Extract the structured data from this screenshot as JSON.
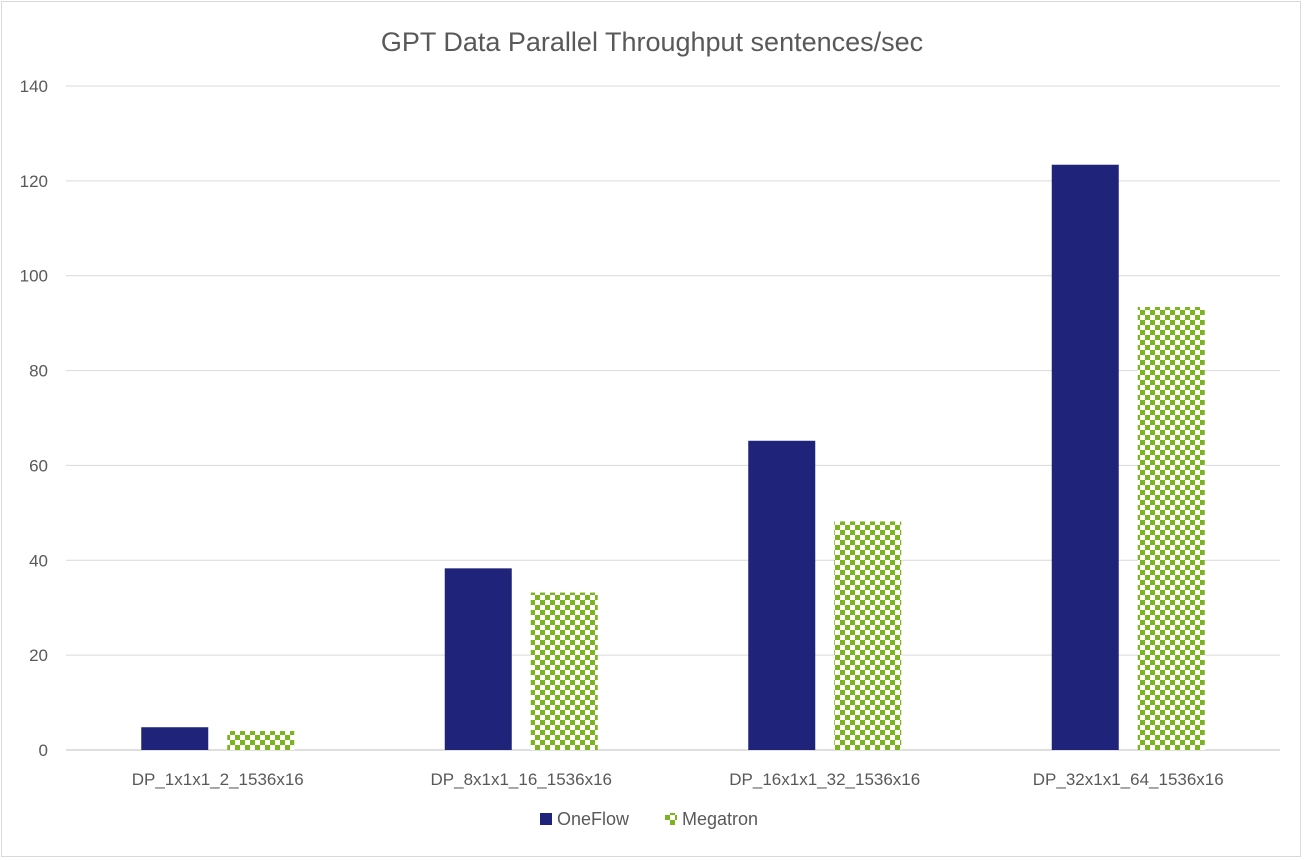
{
  "chart_data": {
    "type": "bar",
    "title": "GPT Data Parallel Throughput  sentences/sec",
    "xlabel": "",
    "ylabel": "",
    "categories": [
      "DP_1x1x1_2_1536x16",
      "DP_8x1x1_16_1536x16",
      "DP_16x1x1_32_1536x16",
      "DP_32x1x1_64_1536x16"
    ],
    "series": [
      {
        "name": "OneFlow",
        "values": [
          4.8,
          38.3,
          65.2,
          123.4
        ],
        "color": "#1f237a",
        "fill": "solid"
      },
      {
        "name": "Megatron",
        "values": [
          4.0,
          33.2,
          48.2,
          93.4
        ],
        "color": "#7ab51d",
        "fill": "checkerboard"
      }
    ],
    "ylim": [
      0,
      140
    ],
    "yticks": [
      0,
      20,
      40,
      60,
      80,
      100,
      120,
      140
    ],
    "grid": true,
    "legend_position": "bottom"
  }
}
